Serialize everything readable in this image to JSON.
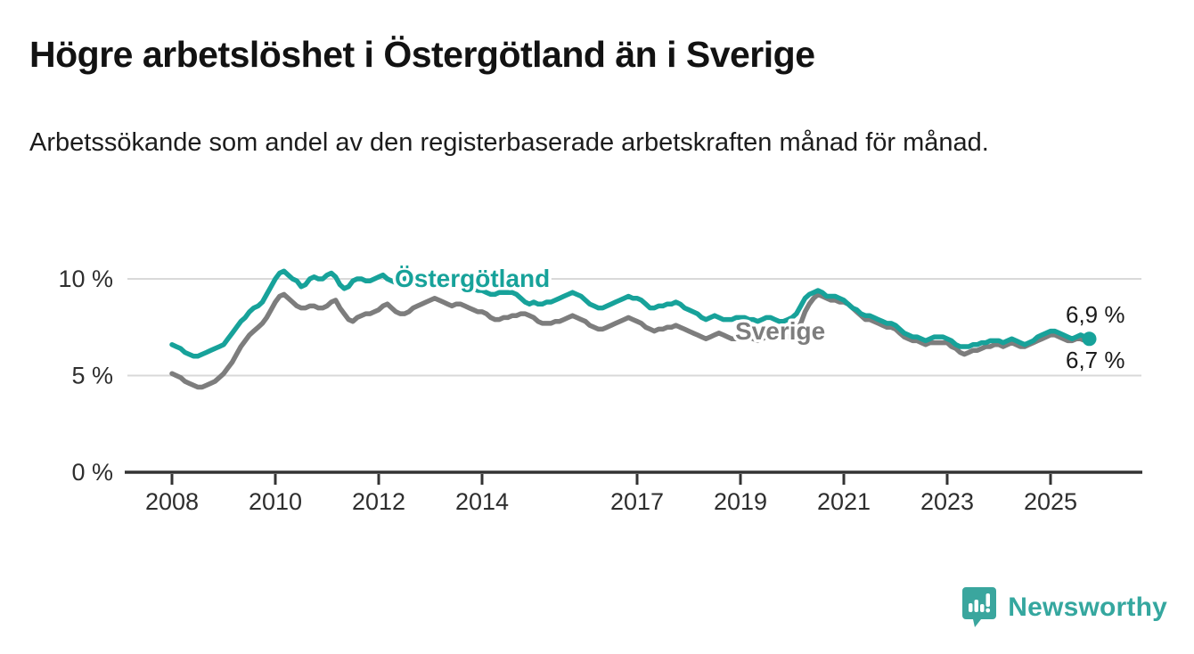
{
  "header": {
    "title": "Högre arbetslöshet i Östergötland än i Sverige",
    "subtitle": "Arbetssökande som andel av den registerbaserade arbetskraften månad för månad."
  },
  "branding": {
    "logo_text": "Newsworthy",
    "logo_color": "#35a79f"
  },
  "colors": {
    "ostergotland_line": "#17a29a",
    "sverige_line": "#7d7d7d",
    "axis": "#333333",
    "gridline": "#d9d9d9",
    "tick_label": "#2e2e2e",
    "end_label": "#1a1a1a"
  },
  "chart_data": {
    "type": "line",
    "unit": "%",
    "frequency": "monthly",
    "start": "2008-01",
    "end": "2025-10",
    "grid": "horizontal",
    "ylim": [
      0,
      11.5
    ],
    "x_ticks": [
      2008,
      2010,
      2012,
      2014,
      2017,
      2019,
      2021,
      2023,
      2025
    ],
    "y_ticks": [
      {
        "value": 0,
        "label": "0 %"
      },
      {
        "value": 5,
        "label": "5 %"
      },
      {
        "value": 10,
        "label": "10 %"
      }
    ],
    "series": [
      {
        "name": "Östergötland",
        "color": "#17a29a",
        "end_label": "6,9 %",
        "end_dot": true,
        "values": [
          6.6,
          6.5,
          6.4,
          6.2,
          6.1,
          6.0,
          6.0,
          6.1,
          6.2,
          6.3,
          6.4,
          6.5,
          6.6,
          6.9,
          7.2,
          7.5,
          7.8,
          8.0,
          8.3,
          8.5,
          8.6,
          8.8,
          9.2,
          9.6,
          10.0,
          10.3,
          10.4,
          10.2,
          10.0,
          9.9,
          9.6,
          9.7,
          10.0,
          10.1,
          10.0,
          10.0,
          10.2,
          10.3,
          10.1,
          9.7,
          9.5,
          9.6,
          9.9,
          10.0,
          10.0,
          9.9,
          9.9,
          10.0,
          10.1,
          10.2,
          10.0,
          9.9,
          9.8,
          9.9,
          10.0,
          10.1,
          10.0,
          9.9,
          9.9,
          10.0,
          10.1,
          10.0,
          9.9,
          9.8,
          9.7,
          9.8,
          9.9,
          9.9,
          9.8,
          9.6,
          9.5,
          9.4,
          9.4,
          9.3,
          9.2,
          9.2,
          9.3,
          9.3,
          9.3,
          9.3,
          9.2,
          9.0,
          8.8,
          8.7,
          8.8,
          8.7,
          8.7,
          8.8,
          8.8,
          8.9,
          9.0,
          9.1,
          9.2,
          9.3,
          9.2,
          9.1,
          8.9,
          8.7,
          8.6,
          8.5,
          8.5,
          8.6,
          8.7,
          8.8,
          8.9,
          9.0,
          9.1,
          9.0,
          9.0,
          8.9,
          8.7,
          8.5,
          8.5,
          8.6,
          8.6,
          8.7,
          8.7,
          8.8,
          8.7,
          8.5,
          8.4,
          8.3,
          8.2,
          8.0,
          7.9,
          8.0,
          8.1,
          8.0,
          7.9,
          7.9,
          7.9,
          8.0,
          8.0,
          8.0,
          7.9,
          7.9,
          7.8,
          7.9,
          8.0,
          8.0,
          7.9,
          7.8,
          7.8,
          7.9,
          8.0,
          8.2,
          8.6,
          9.0,
          9.2,
          9.3,
          9.4,
          9.3,
          9.1,
          9.1,
          9.1,
          9.0,
          8.9,
          8.7,
          8.5,
          8.4,
          8.2,
          8.1,
          8.1,
          8.0,
          7.9,
          7.8,
          7.7,
          7.7,
          7.6,
          7.4,
          7.2,
          7.1,
          7.0,
          7.0,
          6.9,
          6.8,
          6.9,
          7.0,
          7.0,
          7.0,
          6.9,
          6.8,
          6.6,
          6.5,
          6.5,
          6.5,
          6.6,
          6.6,
          6.7,
          6.7,
          6.8,
          6.8,
          6.8,
          6.7,
          6.8,
          6.9,
          6.8,
          6.7,
          6.6,
          6.7,
          6.8,
          7.0,
          7.1,
          7.2,
          7.3,
          7.3,
          7.2,
          7.1,
          7.0,
          6.9,
          7.0,
          7.1,
          7.0,
          6.9
        ]
      },
      {
        "name": "Sverige",
        "color": "#7d7d7d",
        "end_label": "6,7 %",
        "end_dot": false,
        "values": [
          5.1,
          5.0,
          4.9,
          4.7,
          4.6,
          4.5,
          4.4,
          4.4,
          4.5,
          4.6,
          4.7,
          4.9,
          5.1,
          5.4,
          5.7,
          6.1,
          6.5,
          6.8,
          7.1,
          7.3,
          7.5,
          7.7,
          8.0,
          8.4,
          8.8,
          9.1,
          9.2,
          9.0,
          8.8,
          8.6,
          8.5,
          8.5,
          8.6,
          8.6,
          8.5,
          8.5,
          8.6,
          8.8,
          8.9,
          8.5,
          8.2,
          7.9,
          7.8,
          8.0,
          8.1,
          8.2,
          8.2,
          8.3,
          8.4,
          8.6,
          8.7,
          8.5,
          8.3,
          8.2,
          8.2,
          8.3,
          8.5,
          8.6,
          8.7,
          8.8,
          8.9,
          9.0,
          8.9,
          8.8,
          8.7,
          8.6,
          8.7,
          8.7,
          8.6,
          8.5,
          8.4,
          8.3,
          8.3,
          8.2,
          8.0,
          7.9,
          7.9,
          8.0,
          8.0,
          8.1,
          8.1,
          8.2,
          8.2,
          8.1,
          8.0,
          7.8,
          7.7,
          7.7,
          7.7,
          7.8,
          7.8,
          7.9,
          8.0,
          8.1,
          8.0,
          7.9,
          7.8,
          7.6,
          7.5,
          7.4,
          7.4,
          7.5,
          7.6,
          7.7,
          7.8,
          7.9,
          8.0,
          7.9,
          7.8,
          7.7,
          7.5,
          7.4,
          7.3,
          7.4,
          7.4,
          7.5,
          7.5,
          7.6,
          7.5,
          7.4,
          7.3,
          7.2,
          7.1,
          7.0,
          6.9,
          7.0,
          7.1,
          7.2,
          7.1,
          7.0,
          6.9,
          6.9,
          6.9,
          7.0,
          7.0,
          6.9,
          6.8,
          6.9,
          7.0,
          7.0,
          7.0,
          6.9,
          6.9,
          7.0,
          7.1,
          7.3,
          7.7,
          8.3,
          8.7,
          9.0,
          9.2,
          9.1,
          9.0,
          8.9,
          8.9,
          8.8,
          8.8,
          8.7,
          8.5,
          8.3,
          8.1,
          7.9,
          7.9,
          7.8,
          7.7,
          7.6,
          7.5,
          7.5,
          7.4,
          7.2,
          7.0,
          6.9,
          6.8,
          6.8,
          6.7,
          6.6,
          6.7,
          6.7,
          6.7,
          6.7,
          6.7,
          6.5,
          6.4,
          6.2,
          6.1,
          6.2,
          6.3,
          6.3,
          6.4,
          6.5,
          6.5,
          6.6,
          6.6,
          6.5,
          6.6,
          6.7,
          6.6,
          6.5,
          6.5,
          6.6,
          6.7,
          6.8,
          6.9,
          7.0,
          7.1,
          7.1,
          7.0,
          6.9,
          6.8,
          6.8,
          6.9,
          6.9,
          6.8,
          6.7
        ]
      }
    ]
  }
}
